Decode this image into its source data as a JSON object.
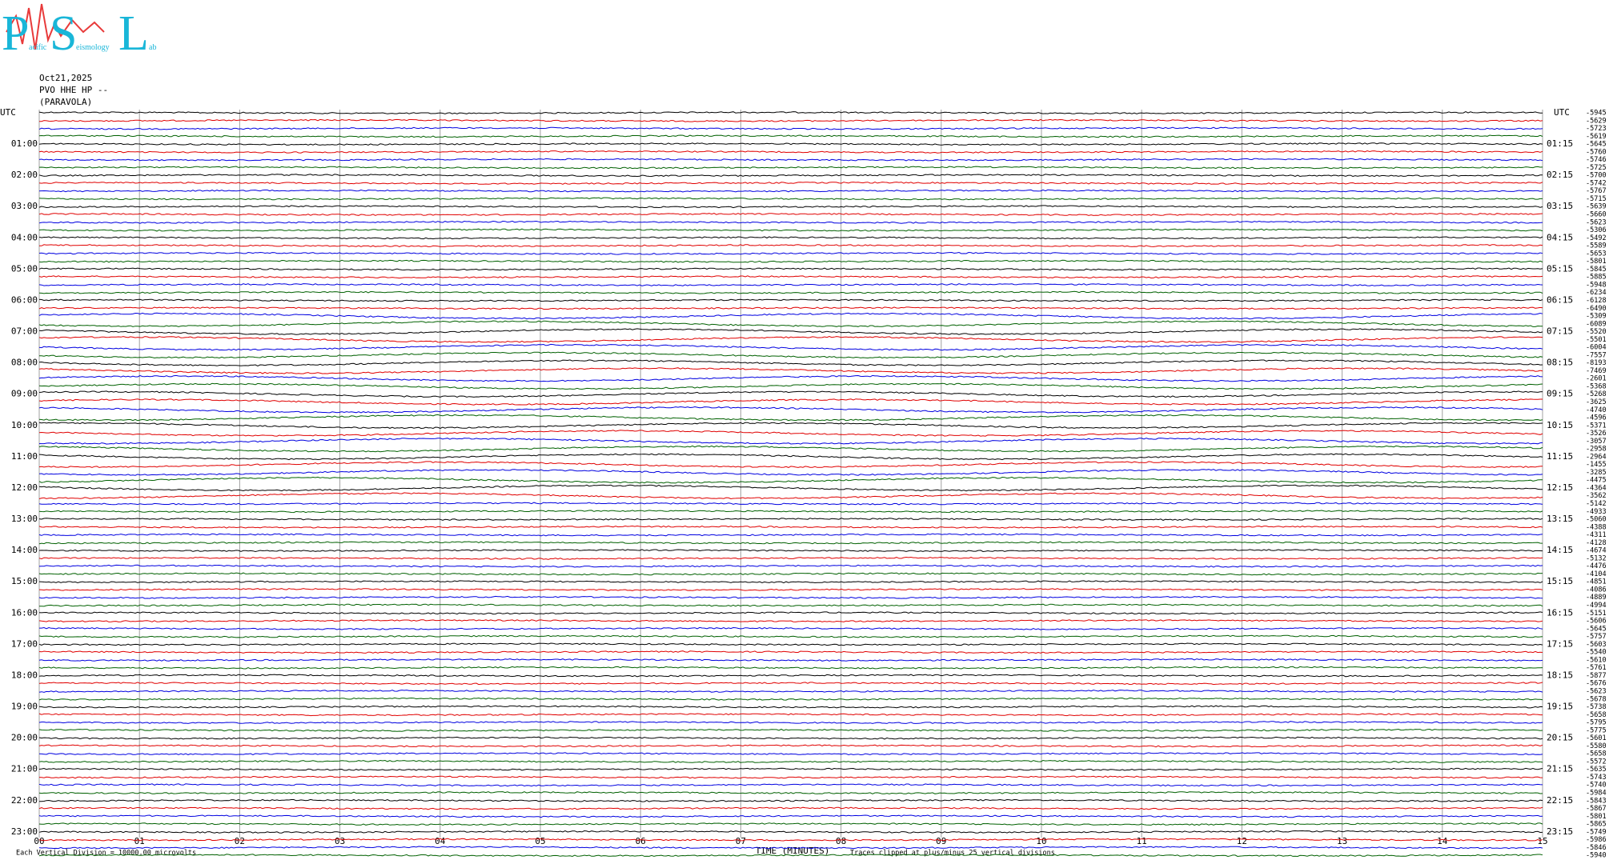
{
  "chart_data": {
    "type": "helicorder",
    "logo": [
      "P",
      "acific",
      "S",
      "eismology",
      "L",
      "ab"
    ],
    "date": "Oct21,2025",
    "station": "PVO HHE HP --",
    "site": "(PARAVOLA)",
    "left_title": "UTC",
    "right_title": "UTC",
    "left_labels": [
      "01:00",
      "02:00",
      "03:00",
      "04:00",
      "05:00",
      "06:00",
      "07:00",
      "08:00",
      "09:00",
      "10:00",
      "11:00",
      "12:00",
      "13:00",
      "14:00",
      "15:00",
      "16:00",
      "17:00",
      "18:00",
      "19:00",
      "20:00",
      "21:00",
      "22:00",
      "23:00"
    ],
    "right_labels": [
      "01:15",
      "02:15",
      "03:15",
      "04:15",
      "05:15",
      "06:15",
      "07:15",
      "08:15",
      "09:15",
      "10:15",
      "11:15",
      "12:15",
      "13:15",
      "14:15",
      "15:15",
      "16:15",
      "17:15",
      "18:15",
      "19:15",
      "20:15",
      "21:15",
      "22:15",
      "23:15"
    ],
    "row_values": [
      -5945,
      -5629,
      -5723,
      -5619,
      -5645,
      -5760,
      -5746,
      -5725,
      -5700,
      -5742,
      -5767,
      -5715,
      -5639,
      -5660,
      -5623,
      -5306,
      -5492,
      -5589,
      -5653,
      -5801,
      -5845,
      -5885,
      -5948,
      -6234,
      -6128,
      -6490,
      -5309,
      -6089,
      -5520,
      -5501,
      -6004,
      -7557,
      -8193,
      -7469,
      -2601,
      -5368,
      -5268,
      -3625,
      -4740,
      -4596,
      -5371,
      -3526,
      -3057,
      -2958,
      -2964,
      -1455,
      -3285,
      -4475,
      -4364,
      -3562,
      -5142,
      -4933,
      -5060,
      -4388,
      -4311,
      -4128,
      -4674,
      -5132,
      -4476,
      -4104,
      -4851,
      -4086,
      -4889,
      -4994,
      -5151,
      -5606,
      -5645,
      -5757,
      -5603,
      -5540,
      -5610,
      -5761,
      -5877,
      -5676,
      -5623,
      -5678,
      -5738,
      -5658,
      -5795,
      -5775,
      -5601,
      -5580,
      -5658,
      -5572,
      -5635,
      -5743,
      -5740,
      -5984,
      -5843,
      -5867,
      -5801,
      -5865,
      -5749,
      -5986,
      -5846,
      -5940
    ],
    "trace_colors": [
      "#000000",
      "#e00000",
      "#0000e0",
      "#006000"
    ],
    "xlim": [
      0,
      15
    ],
    "xticks": [
      {
        "value": 0,
        "label": "00"
      },
      {
        "value": 1,
        "label": "01"
      },
      {
        "value": 2,
        "label": "02"
      },
      {
        "value": 3,
        "label": "03"
      },
      {
        "value": 4,
        "label": "04"
      },
      {
        "value": 5,
        "label": "05"
      },
      {
        "value": 6,
        "label": "06"
      },
      {
        "value": 7,
        "label": "07"
      },
      {
        "value": 8,
        "label": "08"
      },
      {
        "value": 9,
        "label": "09"
      },
      {
        "value": 10,
        "label": "10"
      },
      {
        "value": 11,
        "label": "11"
      },
      {
        "value": 12,
        "label": "12"
      },
      {
        "value": 13,
        "label": "13"
      },
      {
        "value": 14,
        "label": "14"
      },
      {
        "value": 15,
        "label": "15"
      }
    ],
    "xlabel": "TIME (MINUTES)",
    "scale_note": "Each Vertical Division = 10000.00 microvolts",
    "clip_note": "Traces clipped at plus/minus 25 vertical divisions",
    "grid": true
  }
}
